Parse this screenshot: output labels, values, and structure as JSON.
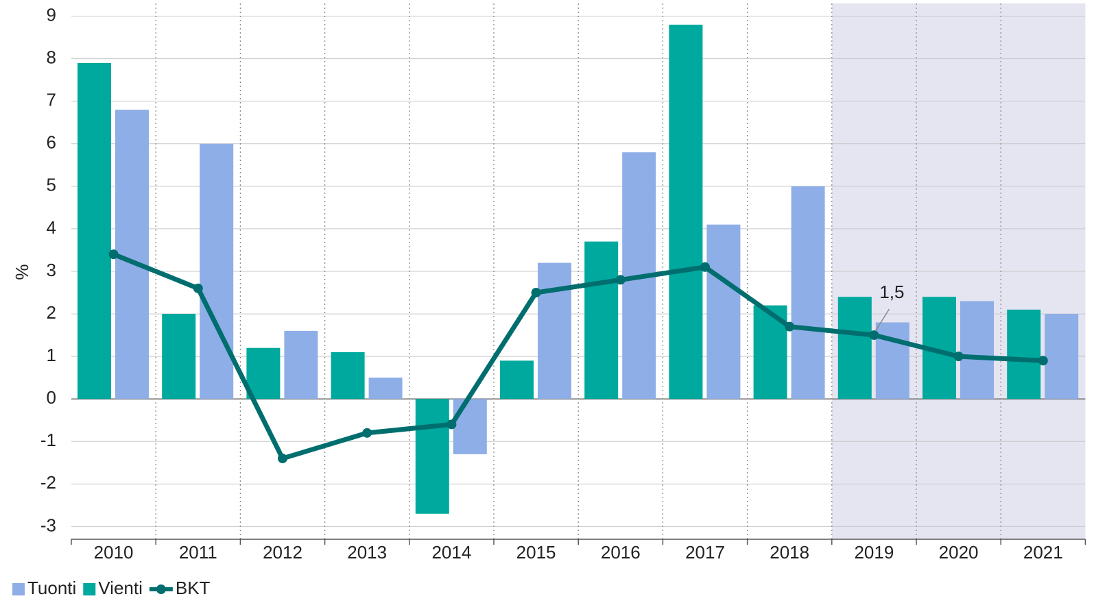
{
  "chart_data": {
    "type": "bar_line",
    "y_label": "%",
    "categories": [
      "2010",
      "2011",
      "2012",
      "2013",
      "2014",
      "2015",
      "2016",
      "2017",
      "2018",
      "2019",
      "2020",
      "2021"
    ],
    "series": [
      {
        "name": "Tuonti",
        "type": "bar",
        "color": "#8eaee8",
        "values": [
          6.8,
          6.0,
          1.6,
          0.5,
          -1.3,
          3.2,
          5.8,
          4.1,
          5.0,
          1.8,
          2.3,
          2.0
        ]
      },
      {
        "name": "Vienti",
        "type": "bar",
        "color": "#00a99d",
        "values": [
          7.9,
          2.0,
          1.2,
          1.1,
          -2.7,
          0.9,
          3.7,
          8.8,
          2.2,
          2.4,
          2.4,
          2.1
        ]
      },
      {
        "name": "BKT",
        "type": "line",
        "color": "#006e6e",
        "values": [
          3.4,
          2.6,
          -1.4,
          -0.8,
          -0.6,
          2.5,
          2.8,
          3.1,
          1.7,
          1.5,
          1.0,
          0.9
        ],
        "value_labels": [
          null,
          null,
          null,
          null,
          null,
          null,
          null,
          null,
          null,
          "1,5",
          null,
          null
        ]
      }
    ],
    "bar_order": [
      "Vienti",
      "Tuonti"
    ],
    "ylim": [
      -3.3,
      9.3
    ],
    "yticks": [
      -3,
      -2,
      -1,
      0,
      1,
      2,
      3,
      4,
      5,
      6,
      7,
      8,
      9
    ],
    "grid": true,
    "shaded_from": "2019",
    "legend": "bottom-left"
  }
}
